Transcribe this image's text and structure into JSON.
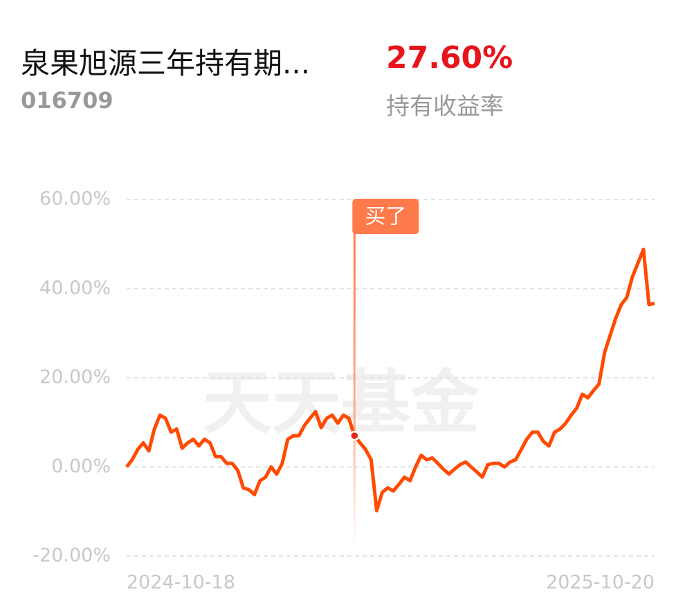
{
  "header": {
    "title": "泉果旭源三年持有期...",
    "code": "016709",
    "return_value": "27.60%",
    "return_label": "持有收益率"
  },
  "chart_data": {
    "type": "line",
    "watermark": "天天基金",
    "categories": [
      "2024-10-18",
      null,
      null,
      null,
      null,
      null,
      null,
      null,
      null,
      null,
      null,
      null,
      null,
      null,
      null,
      null,
      null,
      null,
      null,
      null,
      null,
      null,
      null,
      null,
      null,
      null,
      null,
      null,
      null,
      null,
      null,
      null,
      null,
      null,
      null,
      null,
      null,
      null,
      null,
      null,
      null,
      null,
      null,
      null,
      null,
      null,
      null,
      null,
      null,
      null,
      null,
      null,
      null,
      null,
      null,
      null,
      null,
      null,
      null,
      null,
      null,
      null,
      null,
      null,
      null,
      null,
      null,
      null,
      null,
      null,
      null,
      null,
      null,
      null,
      null,
      null,
      null,
      null,
      null,
      null,
      null,
      null,
      null,
      null,
      null,
      null,
      null,
      null,
      null,
      null,
      null,
      null,
      null,
      null,
      null,
      "2025-10-20"
    ],
    "series": [
      {
        "color": "#ff4a00",
        "values": [
          0,
          1.6,
          3.9,
          5.4,
          3.6,
          8.5,
          11.6,
          10.9,
          7.8,
          8.5,
          4.2,
          5.4,
          6.2,
          4.7,
          6.2,
          5.4,
          2.3,
          2.3,
          0.8,
          0.8,
          -0.8,
          -4.7,
          -5.1,
          -6.2,
          -3.1,
          -2.3,
          0,
          -1.6,
          0.8,
          6.2,
          7.0,
          7.0,
          9.3,
          10.9,
          12.4,
          8.8,
          10.9,
          11.6,
          9.8,
          11.6,
          10.9,
          7.0,
          5.4,
          3.9,
          1.6,
          -9.8,
          -5.7,
          -4.7,
          -5.4,
          -3.9,
          -2.3,
          -3.1,
          0,
          2.6,
          1.6,
          2.0,
          0.8,
          -0.5,
          -1.6,
          -0.5,
          0.5,
          1.1,
          0,
          -1.1,
          -2.3,
          0.5,
          0.8,
          0.8,
          0,
          1.1,
          1.6,
          3.9,
          6.2,
          7.8,
          7.8,
          5.7,
          4.7,
          7.8,
          8.5,
          9.8,
          11.6,
          13.2,
          16.3,
          15.5,
          17.1,
          18.6,
          25.6,
          29.5,
          33.3,
          36.4,
          38.0,
          42.6,
          45.7,
          48.8,
          36.4,
          36.7
        ]
      }
    ],
    "annotation": {
      "text": "买了",
      "at": 41
    },
    "ylim": [
      -20,
      60
    ],
    "yticks": [
      {
        "value": 60,
        "label": "60.00%"
      },
      {
        "value": 40,
        "label": "40.00%"
      },
      {
        "value": 20,
        "label": "20.00%"
      },
      {
        "value": 0,
        "label": "0.00%"
      },
      {
        "value": -20,
        "label": "-20.00%"
      }
    ],
    "grid": true
  }
}
